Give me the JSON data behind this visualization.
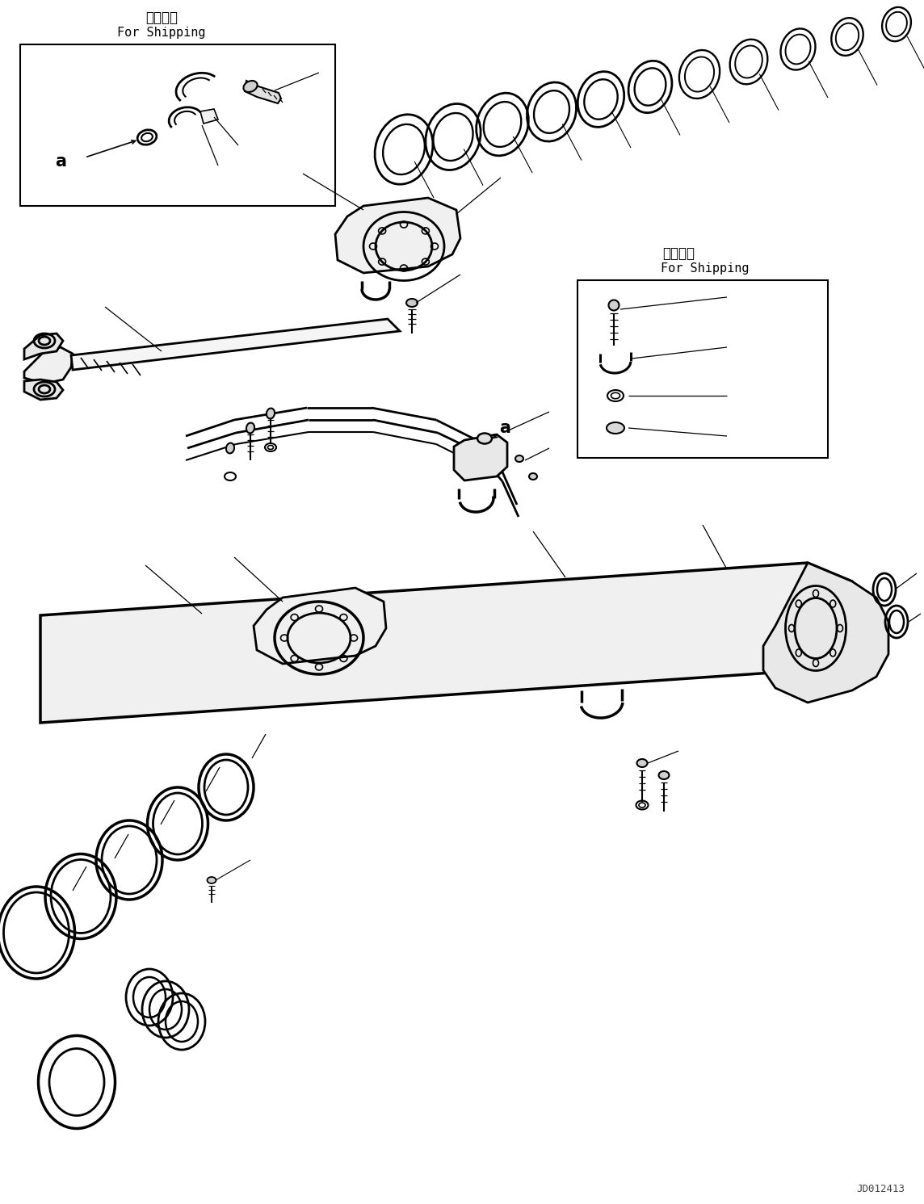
{
  "background_color": "#ffffff",
  "line_color": "#000000",
  "lw": 1.2,
  "fig_width": 11.44,
  "fig_height": 14.91,
  "dpi": 100,
  "watermark": "JD012413",
  "jp1": "運携部品",
  "en1": "For Shipping",
  "jp2": "運携部品",
  "en2": "For Shipping",
  "label_a": "a"
}
